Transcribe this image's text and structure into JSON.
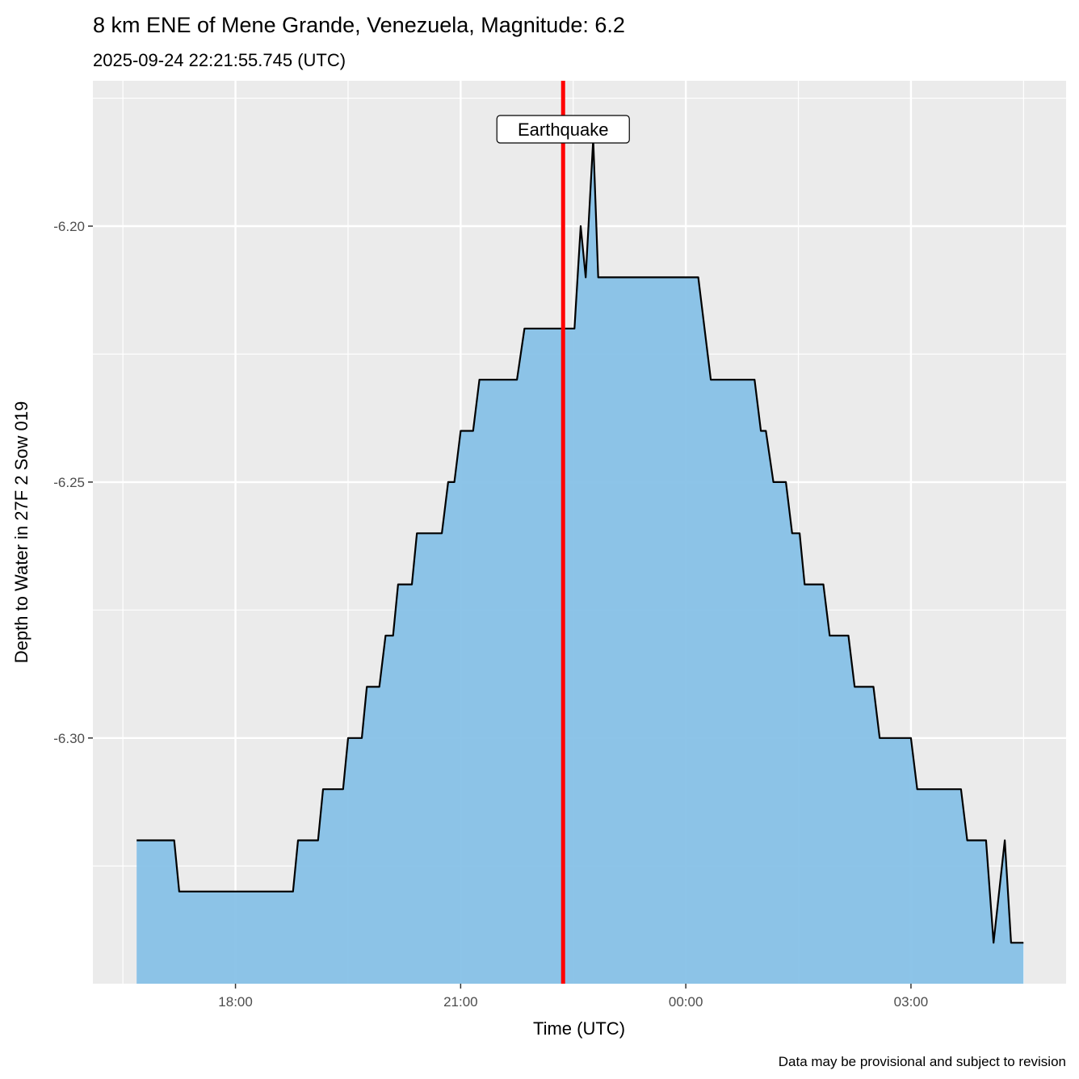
{
  "chart_data": {
    "type": "area",
    "title": "8 km ENE of Mene Grande, Venezuela, Magnitude: 6.2",
    "subtitle": "2025-09-24 22:21:55.745 (UTC)",
    "xlabel": "Time (UTC)",
    "ylabel": "Depth to Water in 27F 2 Sow 019",
    "caption": "Data may be provisional and subject to revision",
    "xlim": [
      "2025-09-24T16:06",
      "2025-09-25T05:04"
    ],
    "ylim": [
      -6.348,
      -6.1716
    ],
    "grid": true,
    "x_ticks": [
      {
        "t": "2025-09-24T18:00",
        "label": "18:00"
      },
      {
        "t": "2025-09-24T21:00",
        "label": "21:00"
      },
      {
        "t": "2025-09-25T00:00",
        "label": "00:00"
      },
      {
        "t": "2025-09-25T03:00",
        "label": "03:00"
      }
    ],
    "y_ticks": [
      {
        "v": -6.2,
        "label": "-6.20"
      },
      {
        "v": -6.25,
        "label": "-6.25"
      },
      {
        "v": -6.3,
        "label": "-6.30"
      }
    ],
    "event": {
      "t": "2025-09-24T22:21:55",
      "label": "Earthquake",
      "color": "#FF0000"
    },
    "fill_color": "#87C1E7",
    "line_color": "#000000",
    "points": [
      [
        "2025-09-24T16:41",
        -6.32
      ],
      [
        "2025-09-24T17:11",
        -6.32
      ],
      [
        "2025-09-24T17:15",
        -6.33
      ],
      [
        "2025-09-24T18:46",
        -6.33
      ],
      [
        "2025-09-24T18:50",
        -6.32
      ],
      [
        "2025-09-24T19:06",
        -6.32
      ],
      [
        "2025-09-24T19:10",
        -6.31
      ],
      [
        "2025-09-24T19:26",
        -6.31
      ],
      [
        "2025-09-24T19:30",
        -6.3
      ],
      [
        "2025-09-24T19:41",
        -6.3
      ],
      [
        "2025-09-24T19:45",
        -6.29
      ],
      [
        "2025-09-24T19:55",
        -6.29
      ],
      [
        "2025-09-24T20:00",
        -6.28
      ],
      [
        "2025-09-24T20:06",
        -6.28
      ],
      [
        "2025-09-24T20:10",
        -6.27
      ],
      [
        "2025-09-24T20:21",
        -6.27
      ],
      [
        "2025-09-24T20:25",
        -6.26
      ],
      [
        "2025-09-24T20:45",
        -6.26
      ],
      [
        "2025-09-24T20:50",
        -6.25
      ],
      [
        "2025-09-24T20:55",
        -6.25
      ],
      [
        "2025-09-24T21:00",
        -6.24
      ],
      [
        "2025-09-24T21:10",
        -6.24
      ],
      [
        "2025-09-24T21:15",
        -6.23
      ],
      [
        "2025-09-24T21:45",
        -6.23
      ],
      [
        "2025-09-24T21:51",
        -6.22
      ],
      [
        "2025-09-24T22:31",
        -6.22
      ],
      [
        "2025-09-24T22:36",
        -6.2
      ],
      [
        "2025-09-24T22:40",
        -6.21
      ],
      [
        "2025-09-24T22:46",
        -6.183
      ],
      [
        "2025-09-24T22:50",
        -6.21
      ],
      [
        "2025-09-25T00:10",
        -6.21
      ],
      [
        "2025-09-25T00:20",
        -6.23
      ],
      [
        "2025-09-25T00:55",
        -6.23
      ],
      [
        "2025-09-25T01:00",
        -6.24
      ],
      [
        "2025-09-25T01:04",
        -6.24
      ],
      [
        "2025-09-25T01:10",
        -6.25
      ],
      [
        "2025-09-25T01:20",
        -6.25
      ],
      [
        "2025-09-25T01:25",
        -6.26
      ],
      [
        "2025-09-25T01:31",
        -6.26
      ],
      [
        "2025-09-25T01:35",
        -6.27
      ],
      [
        "2025-09-25T01:50",
        -6.27
      ],
      [
        "2025-09-25T01:55",
        -6.28
      ],
      [
        "2025-09-25T02:10",
        -6.28
      ],
      [
        "2025-09-25T02:15",
        -6.29
      ],
      [
        "2025-09-25T02:30",
        -6.29
      ],
      [
        "2025-09-25T02:35",
        -6.3
      ],
      [
        "2025-09-25T03:00",
        -6.3
      ],
      [
        "2025-09-25T03:05",
        -6.31
      ],
      [
        "2025-09-25T03:40",
        -6.31
      ],
      [
        "2025-09-25T03:45",
        -6.32
      ],
      [
        "2025-09-25T04:00",
        -6.32
      ],
      [
        "2025-09-25T04:06",
        -6.34
      ],
      [
        "2025-09-25T04:15",
        -6.32
      ],
      [
        "2025-09-25T04:20",
        -6.34
      ],
      [
        "2025-09-25T04:30",
        -6.34
      ]
    ]
  }
}
